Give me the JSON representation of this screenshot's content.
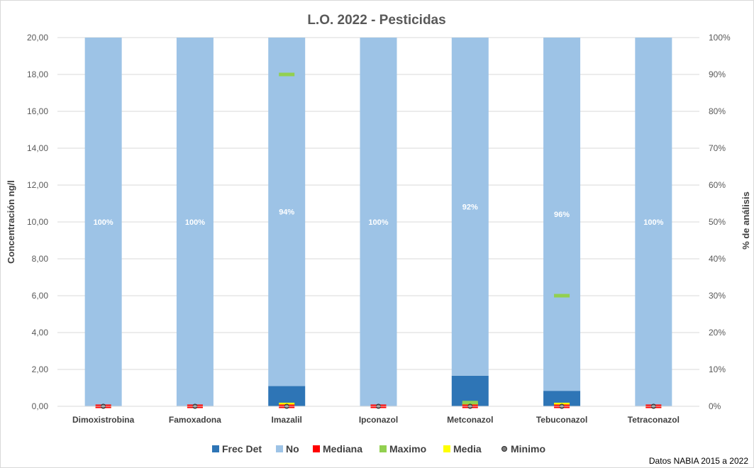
{
  "chart_data": {
    "type": "bar",
    "title": "L.O. 2022 - Pesticidas",
    "ylabel": "Concentración ng/l",
    "y2label": "% de análisis",
    "ylim": [
      0,
      20
    ],
    "y2lim": [
      0,
      100
    ],
    "yticks": [
      "0,00",
      "2,00",
      "4,00",
      "6,00",
      "8,00",
      "10,00",
      "12,00",
      "14,00",
      "16,00",
      "18,00",
      "20,00"
    ],
    "y2ticks": [
      "0%",
      "10%",
      "20%",
      "30%",
      "40%",
      "50%",
      "60%",
      "70%",
      "80%",
      "90%",
      "100%"
    ],
    "grid": true,
    "legend_position": "bottom",
    "categories": [
      "Dimoxistrobina",
      "Famoxadona",
      "Imazalil",
      "Ipconazol",
      "Metconazol",
      "Tebuconazol",
      "Tetraconazol"
    ],
    "series": [
      {
        "name": "Frec Det",
        "axis": "secondary",
        "color": "#2e75b6",
        "values": [
          0,
          0,
          5.5,
          0,
          8.3,
          4.2,
          0
        ]
      },
      {
        "name": "No",
        "axis": "secondary",
        "color": "#9dc3e6",
        "values": [
          100,
          100,
          94.5,
          100,
          91.7,
          95.8,
          100
        ],
        "labels": [
          "100%",
          "100%",
          "94%",
          "100%",
          "92%",
          "96%",
          "100%"
        ]
      },
      {
        "name": "Mediana",
        "axis": "primary",
        "color": "#ff0000",
        "marker": "dash",
        "values": [
          0,
          0,
          0,
          0,
          0,
          0,
          0
        ]
      },
      {
        "name": "Maximo",
        "axis": "primary",
        "color": "#92d050",
        "marker": "dash",
        "values": [
          0,
          0,
          18.0,
          0,
          0.2,
          6.0,
          0
        ]
      },
      {
        "name": "Media",
        "axis": "primary",
        "color": "#ffff00",
        "marker": "dash",
        "values": [
          0,
          0,
          0.1,
          0,
          0.1,
          0.1,
          0
        ]
      },
      {
        "name": "Minimo",
        "axis": "primary",
        "color": "#7f7f7f",
        "marker": "circle",
        "values": [
          0,
          0,
          0,
          0,
          0,
          0,
          0
        ]
      }
    ]
  },
  "footnote": "Datos NABIA 2015 a 2022"
}
